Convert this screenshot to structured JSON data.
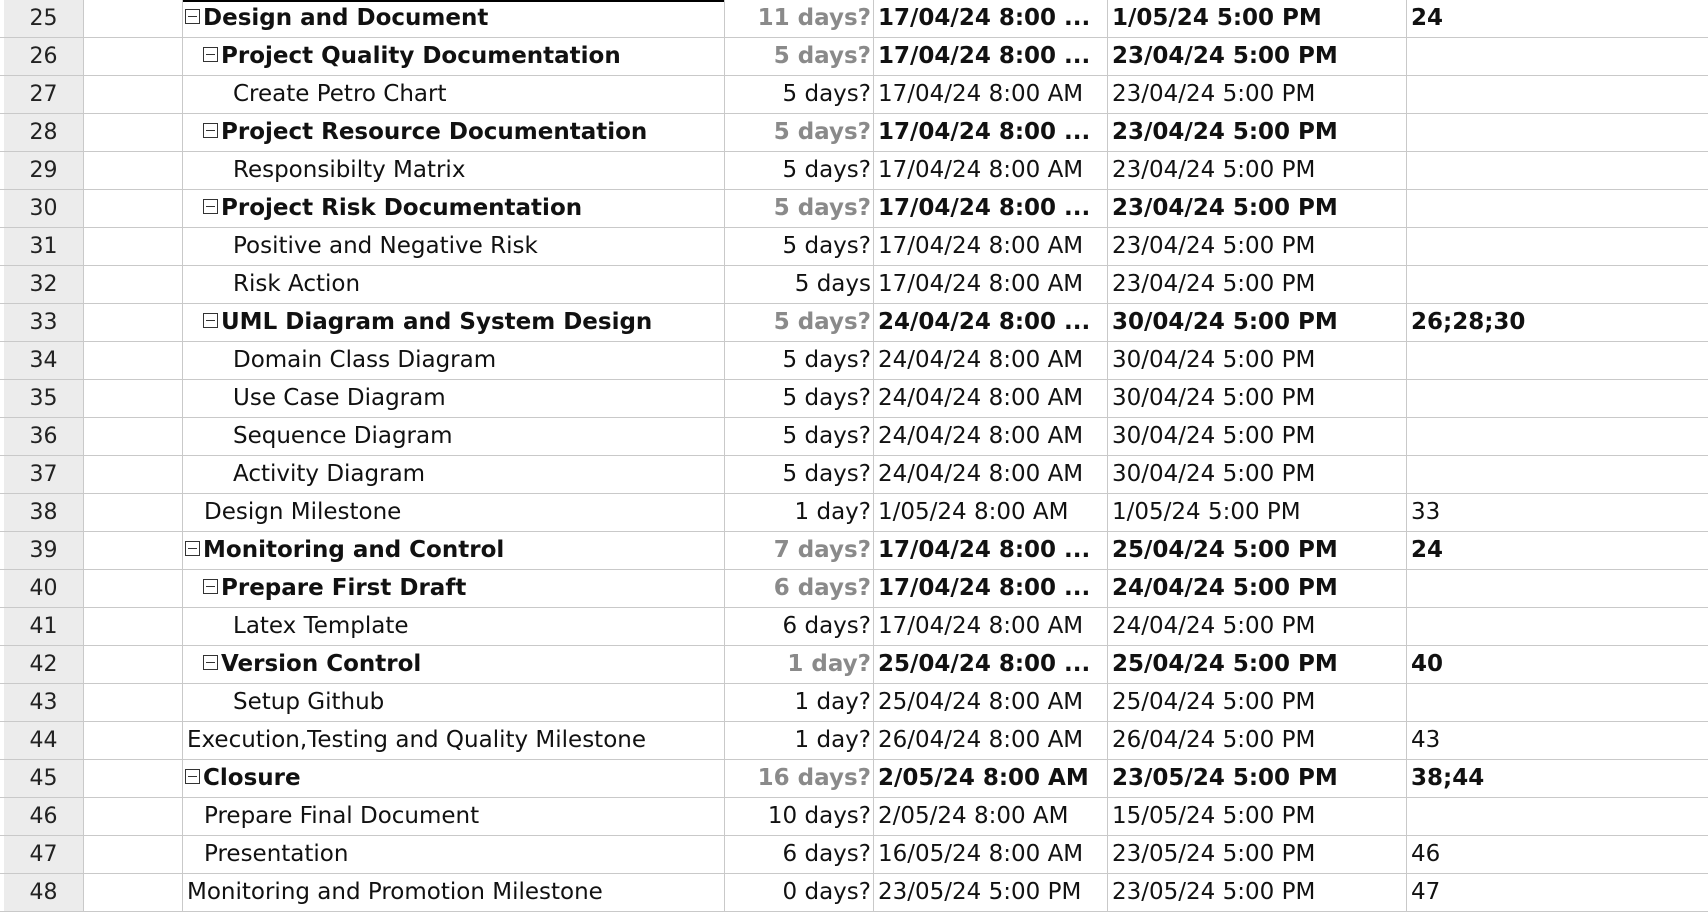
{
  "rows": [
    {
      "id": "25",
      "name": "Design and Document",
      "duration": "11 days?",
      "start": "17/04/24 8:00 ...",
      "finish": "1/05/24 5:00 PM",
      "predecessors": "24",
      "level": 0,
      "summary": true
    },
    {
      "id": "26",
      "name": "Project Quality Documentation",
      "duration": "5 days?",
      "start": "17/04/24 8:00 ...",
      "finish": "23/04/24 5:00 PM",
      "predecessors": "",
      "level": 1,
      "summary": true
    },
    {
      "id": "27",
      "name": "Create Petro Chart",
      "duration": "5 days?",
      "start": "17/04/24 8:00 AM",
      "finish": "23/04/24 5:00 PM",
      "predecessors": "",
      "level": 2,
      "summary": false
    },
    {
      "id": "28",
      "name": "Project Resource Documentation",
      "duration": "5 days?",
      "start": "17/04/24 8:00 ...",
      "finish": "23/04/24 5:00 PM",
      "predecessors": "",
      "level": 1,
      "summary": true
    },
    {
      "id": "29",
      "name": "Responsibilty Matrix",
      "duration": "5 days?",
      "start": "17/04/24 8:00 AM",
      "finish": "23/04/24 5:00 PM",
      "predecessors": "",
      "level": 2,
      "summary": false
    },
    {
      "id": "30",
      "name": "Project Risk Documentation",
      "duration": "5 days?",
      "start": "17/04/24 8:00 ...",
      "finish": "23/04/24 5:00 PM",
      "predecessors": "",
      "level": 1,
      "summary": true
    },
    {
      "id": "31",
      "name": "Positive and Negative Risk",
      "duration": "5 days?",
      "start": "17/04/24 8:00 AM",
      "finish": "23/04/24 5:00 PM",
      "predecessors": "",
      "level": 2,
      "summary": false
    },
    {
      "id": "32",
      "name": "Risk Action",
      "duration": "5 days",
      "start": "17/04/24 8:00 AM",
      "finish": "23/04/24 5:00 PM",
      "predecessors": "",
      "level": 2,
      "summary": false
    },
    {
      "id": "33",
      "name": "UML Diagram and System Design",
      "duration": "5 days?",
      "start": "24/04/24 8:00 ...",
      "finish": "30/04/24 5:00 PM",
      "predecessors": "26;28;30",
      "level": 1,
      "summary": true
    },
    {
      "id": "34",
      "name": "Domain Class Diagram",
      "duration": "5 days?",
      "start": "24/04/24 8:00 AM",
      "finish": "30/04/24 5:00 PM",
      "predecessors": "",
      "level": 2,
      "summary": false
    },
    {
      "id": "35",
      "name": "Use Case Diagram",
      "duration": "5 days?",
      "start": "24/04/24 8:00 AM",
      "finish": "30/04/24 5:00 PM",
      "predecessors": "",
      "level": 2,
      "summary": false
    },
    {
      "id": "36",
      "name": "Sequence Diagram",
      "duration": "5 days?",
      "start": "24/04/24 8:00 AM",
      "finish": "30/04/24 5:00 PM",
      "predecessors": "",
      "level": 2,
      "summary": false
    },
    {
      "id": "37",
      "name": "Activity Diagram",
      "duration": "5 days?",
      "start": "24/04/24 8:00 AM",
      "finish": "30/04/24 5:00 PM",
      "predecessors": "",
      "level": 2,
      "summary": false
    },
    {
      "id": "38",
      "name": "Design Milestone",
      "duration": "1 day?",
      "start": "1/05/24 8:00 AM",
      "finish": "1/05/24 5:00 PM",
      "predecessors": "33",
      "level": 1,
      "summary": false
    },
    {
      "id": "39",
      "name": "Monitoring and Control",
      "duration": "7 days?",
      "start": "17/04/24 8:00 ...",
      "finish": "25/04/24 5:00 PM",
      "predecessors": "24",
      "level": 0,
      "summary": true
    },
    {
      "id": "40",
      "name": "Prepare First Draft",
      "duration": "6 days?",
      "start": "17/04/24 8:00 ...",
      "finish": "24/04/24 5:00 PM",
      "predecessors": "",
      "level": 1,
      "summary": true
    },
    {
      "id": "41",
      "name": "Latex Template",
      "duration": "6 days?",
      "start": "17/04/24 8:00 AM",
      "finish": "24/04/24 5:00 PM",
      "predecessors": "",
      "level": 2,
      "summary": false
    },
    {
      "id": "42",
      "name": "Version Control",
      "duration": "1 day?",
      "start": "25/04/24 8:00 ...",
      "finish": "25/04/24 5:00 PM",
      "predecessors": "40",
      "level": 1,
      "summary": true
    },
    {
      "id": "43",
      "name": "Setup Github",
      "duration": "1 day?",
      "start": "25/04/24 8:00 AM",
      "finish": "25/04/24 5:00 PM",
      "predecessors": "",
      "level": 2,
      "summary": false
    },
    {
      "id": "44",
      "name": "Execution,Testing and Quality Milestone",
      "duration": "1 day?",
      "start": "26/04/24 8:00 AM",
      "finish": "26/04/24 5:00 PM",
      "predecessors": "43",
      "level": 0,
      "summary": false
    },
    {
      "id": "45",
      "name": "Closure",
      "duration": "16 days?",
      "start": "2/05/24 8:00 AM",
      "finish": "23/05/24 5:00 PM",
      "predecessors": "38;44",
      "level": 0,
      "summary": true
    },
    {
      "id": "46",
      "name": "Prepare Final Document",
      "duration": "10 days?",
      "start": "2/05/24 8:00 AM",
      "finish": "15/05/24 5:00 PM",
      "predecessors": "",
      "level": 1,
      "summary": false
    },
    {
      "id": "47",
      "name": "Presentation",
      "duration": "6 days?",
      "start": "16/05/24 8:00 AM",
      "finish": "23/05/24 5:00 PM",
      "predecessors": "46",
      "level": 1,
      "summary": false
    },
    {
      "id": "48",
      "name": "Monitoring and Promotion Milestone",
      "duration": "0 days?",
      "start": "23/05/24 5:00 PM",
      "finish": "23/05/24 5:00 PM",
      "predecessors": "47",
      "level": 0,
      "summary": false
    }
  ]
}
